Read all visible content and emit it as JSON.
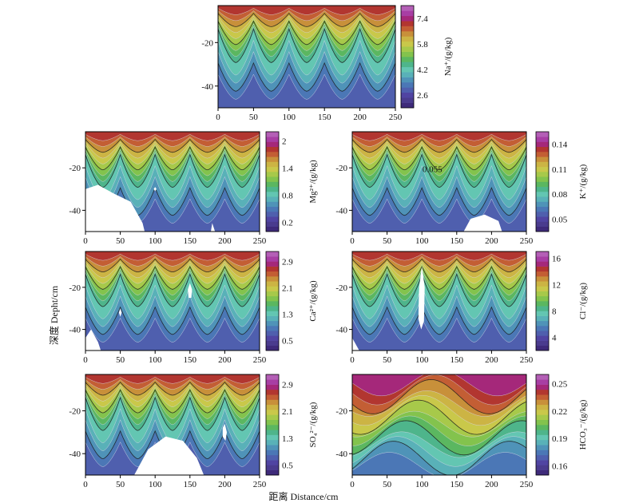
{
  "figure": {
    "ylabel": "深度 Depht/cm",
    "xlabel": "距离 Distance/cm"
  },
  "colors": {
    "bands": [
      "#3e2a7a",
      "#4a3b8e",
      "#5044a2",
      "#4f5fae",
      "#4b77b6",
      "#4f93b8",
      "#59b1b8",
      "#63c6b2",
      "#4eb58b",
      "#5bb760",
      "#83c34d",
      "#a7c94a",
      "#c9c84a",
      "#ccb444",
      "#c8903a",
      "#c35e34",
      "#b23630",
      "#a5287a",
      "#a83ea4",
      "#b45fb6"
    ],
    "contour_dark": "#1a1a1a",
    "contour_light": "#d8d8e8",
    "hole": "#ffffff"
  },
  "chart_data": [
    {
      "type": "heatmap",
      "variable": "Na+",
      "unit_label": "Na⁺/(g/kg)",
      "x_ticks": [
        0,
        50,
        100,
        150,
        200,
        250
      ],
      "y_ticks": [
        -20,
        -40
      ],
      "xlim": [
        0,
        250
      ],
      "ylim": [
        -50,
        -3
      ],
      "colorbar_ticks": [
        2.6,
        4.2,
        5.8,
        7.4
      ],
      "colorbar_range": [
        1.8,
        8.2
      ],
      "peaks_x": [
        0,
        50,
        100,
        150,
        200,
        250
      ],
      "annotations": []
    },
    {
      "type": "heatmap",
      "variable": "Mg2+",
      "unit_label": "Mg²⁺/(g/kg)",
      "x_ticks": [
        0,
        50,
        100,
        150,
        200,
        250
      ],
      "y_ticks": [
        -20,
        -40
      ],
      "xlim": [
        0,
        250
      ],
      "ylim": [
        -50,
        -3
      ],
      "colorbar_ticks": [
        0.2,
        0.8,
        1.4,
        2.0
      ],
      "colorbar_range": [
        0.0,
        2.2
      ],
      "peaks_x": [
        0,
        50,
        100,
        150,
        200,
        250
      ],
      "annotations": []
    },
    {
      "type": "heatmap",
      "variable": "K+",
      "unit_label": "K⁺/(g/kg)",
      "x_ticks": [
        0,
        50,
        100,
        150,
        200,
        250
      ],
      "y_ticks": [
        -20,
        -40
      ],
      "xlim": [
        0,
        250
      ],
      "ylim": [
        -50,
        -3
      ],
      "colorbar_ticks": [
        0.05,
        0.08,
        0.11,
        0.14
      ],
      "colorbar_range": [
        0.035,
        0.155
      ],
      "peaks_x": [
        0,
        50,
        100,
        150,
        200,
        250
      ],
      "annotations": [
        {
          "text": "0.055",
          "x": 115,
          "y": -22
        }
      ]
    },
    {
      "type": "heatmap",
      "variable": "Ca2+",
      "unit_label": "Ca²⁺/(g/kg)",
      "x_ticks": [
        0,
        50,
        100,
        150,
        200,
        250
      ],
      "y_ticks": [
        -20,
        -40
      ],
      "xlim": [
        0,
        250
      ],
      "ylim": [
        -50,
        -3
      ],
      "colorbar_ticks": [
        0.5,
        1.3,
        2.1,
        2.9
      ],
      "colorbar_range": [
        0.2,
        3.2
      ],
      "peaks_x": [
        0,
        50,
        100,
        150,
        200,
        250
      ],
      "annotations": []
    },
    {
      "type": "heatmap",
      "variable": "Cl-",
      "unit_label": "Cl⁻/(g/kg)",
      "x_ticks": [
        0,
        50,
        100,
        150,
        200,
        250
      ],
      "y_ticks": [
        -20,
        -40
      ],
      "xlim": [
        0,
        250
      ],
      "ylim": [
        -50,
        -3
      ],
      "colorbar_ticks": [
        4,
        8,
        12,
        16
      ],
      "colorbar_range": [
        2,
        17
      ],
      "peaks_x": [
        0,
        50,
        100,
        150,
        200,
        250
      ],
      "annotations": []
    },
    {
      "type": "heatmap",
      "variable": "SO42-",
      "unit_label": "SO₄²⁻/(g/kg)",
      "x_ticks": [
        0,
        50,
        100,
        150,
        200,
        250
      ],
      "y_ticks": [
        -20,
        -40
      ],
      "xlim": [
        0,
        250
      ],
      "ylim": [
        -50,
        -3
      ],
      "colorbar_ticks": [
        0.5,
        1.3,
        2.1,
        2.9
      ],
      "colorbar_range": [
        0.2,
        3.2
      ],
      "peaks_x": [
        0,
        50,
        100,
        150,
        200,
        250
      ],
      "annotations": []
    },
    {
      "type": "heatmap",
      "variable": "HCO3-",
      "unit_label": "HCO₃⁻/(g/kg)",
      "x_ticks": [
        0,
        50,
        100,
        150,
        200,
        250
      ],
      "y_ticks": [
        -20,
        -40
      ],
      "xlim": [
        0,
        250
      ],
      "ylim": [
        -50,
        -3
      ],
      "colorbar_ticks": [
        0.16,
        0.19,
        0.22,
        0.25
      ],
      "colorbar_range": [
        0.15,
        0.26
      ],
      "peaks_x": [],
      "annotations": []
    }
  ]
}
